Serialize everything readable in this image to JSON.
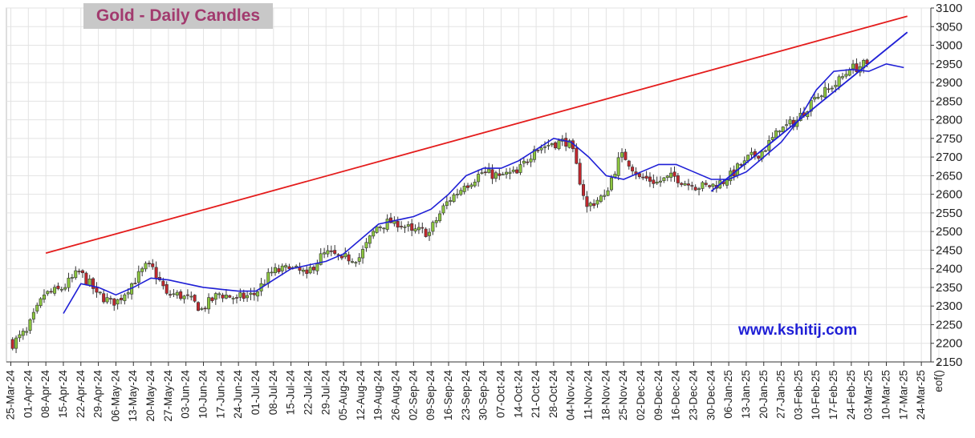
{
  "chart_data": {
    "type": "candlestick",
    "title": "Gold - Daily Candles",
    "watermark": "www.kshitij.com",
    "ylim": [
      2150,
      3100
    ],
    "y_ticks": [
      2150,
      2200,
      2250,
      2300,
      2350,
      2400,
      2450,
      2500,
      2550,
      2600,
      2650,
      2700,
      2750,
      2800,
      2850,
      2900,
      2950,
      3000,
      3050,
      3100
    ],
    "x_tick_labels": [
      "25-Mar-24",
      "01-Apr-24",
      "08-Apr-24",
      "15-Apr-24",
      "22-Apr-24",
      "29-Apr-24",
      "06-May-24",
      "13-May-24",
      "20-May-24",
      "27-May-24",
      "03-Jun-24",
      "10-Jun-24",
      "17-Jun-24",
      "24-Jun-24",
      "01-Jul-24",
      "08-Jul-24",
      "15-Jul-24",
      "22-Jul-24",
      "29-Jul-24",
      "05-Aug-24",
      "12-Aug-24",
      "19-Aug-24",
      "26-Aug-24",
      "02-Sep-24",
      "09-Sep-24",
      "16-Sep-24",
      "23-Sep-24",
      "30-Sep-24",
      "07-Oct-24",
      "14-Oct-24",
      "21-Oct-24",
      "28-Oct-24",
      "04-Nov-24",
      "11-Nov-24",
      "18-Nov-24",
      "25-Nov-24",
      "02-Dec-24",
      "09-Dec-24",
      "16-Dec-24",
      "23-Dec-24",
      "30-Dec-24",
      "06-Jan-25",
      "13-Jan-25",
      "20-Jan-25",
      "27-Jan-25",
      "03-Feb-25",
      "10-Feb-25",
      "17-Feb-25",
      "24-Feb-25",
      "03-Mar-25",
      "10-Mar-25",
      "17-Mar-25",
      "24-Mar-25",
      "eof()"
    ],
    "weekly_closes": [
      2232,
      2330,
      2345,
      2392,
      2337,
      2302,
      2360,
      2415,
      2334,
      2327,
      2293,
      2333,
      2321,
      2330,
      2391,
      2400,
      2387,
      2443,
      2429,
      2430,
      2513,
      2530,
      2503,
      2498,
      2580,
      2622,
      2658,
      2650,
      2657,
      2720,
      2736,
      2744,
      2567,
      2597,
      2712,
      2647,
      2633,
      2648,
      2622,
      2620,
      2639,
      2690,
      2715,
      2770,
      2799,
      2860,
      2885,
      2935,
      2950
    ],
    "moving_average": [
      [
        3,
        2280
      ],
      [
        4,
        2360
      ],
      [
        5,
        2350
      ],
      [
        6,
        2330
      ],
      [
        7,
        2350
      ],
      [
        8,
        2375
      ],
      [
        9,
        2370
      ],
      [
        10,
        2360
      ],
      [
        11,
        2350
      ],
      [
        12,
        2345
      ],
      [
        13,
        2340
      ],
      [
        14,
        2340
      ],
      [
        15,
        2370
      ],
      [
        16,
        2400
      ],
      [
        17,
        2410
      ],
      [
        18,
        2420
      ],
      [
        19,
        2440
      ],
      [
        20,
        2480
      ],
      [
        21,
        2520
      ],
      [
        22,
        2530
      ],
      [
        23,
        2540
      ],
      [
        24,
        2560
      ],
      [
        25,
        2600
      ],
      [
        26,
        2650
      ],
      [
        27,
        2670
      ],
      [
        28,
        2670
      ],
      [
        29,
        2690
      ],
      [
        30,
        2720
      ],
      [
        31,
        2750
      ],
      [
        32,
        2740
      ],
      [
        33,
        2700
      ],
      [
        34,
        2650
      ],
      [
        35,
        2640
      ],
      [
        36,
        2660
      ],
      [
        37,
        2680
      ],
      [
        38,
        2680
      ],
      [
        39,
        2660
      ],
      [
        40,
        2640
      ],
      [
        41,
        2640
      ],
      [
        42,
        2660
      ],
      [
        43,
        2700
      ],
      [
        44,
        2740
      ],
      [
        45,
        2800
      ],
      [
        46,
        2880
      ],
      [
        47,
        2930
      ],
      [
        48,
        2935
      ],
      [
        49,
        2930
      ],
      [
        50,
        2950
      ],
      [
        51,
        2940
      ]
    ],
    "trendlines": [
      {
        "color": "#e41c1c",
        "from": [
          "08-Apr-24",
          2442
        ],
        "to": [
          "03-Apr-25",
          3078
        ]
      },
      {
        "color": "#1f1fd6",
        "from": [
          "30-Dec-24",
          2608
        ],
        "to": [
          "03-Apr-25",
          3035
        ]
      }
    ],
    "colors": {
      "bull": "#8cc63f",
      "bear": "#c1272d",
      "ma": "#1f1fd6",
      "resistance": "#e41c1c",
      "support": "#1f1fd6",
      "grid": "#e3e3e3"
    },
    "grid": true
  }
}
